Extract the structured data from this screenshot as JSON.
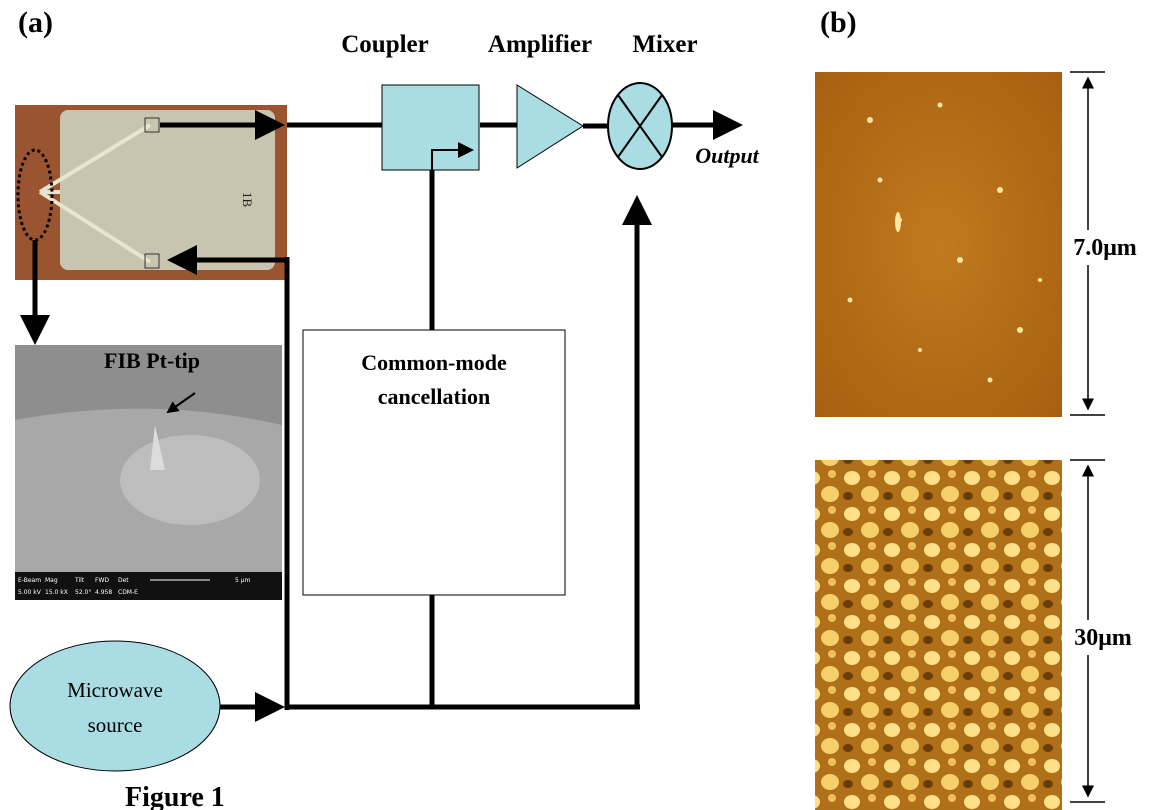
{
  "labels": {
    "panel_a": "(a)",
    "panel_b": "(b)"
  },
  "blocks": {
    "coupler": "Coupler",
    "amplifier": "Amplifier",
    "mixer": "Mixer",
    "output": "Output",
    "common_mode": [
      "Common-mode",
      "cancellation"
    ],
    "source": [
      "Microwave",
      "source"
    ]
  },
  "sem": {
    "title": "FIB Pt-tip",
    "info_heads": [
      "E-Beam",
      "Mag",
      "Tilt",
      "FWD",
      "Det"
    ],
    "info_values": [
      "5.00 kV",
      "15.0 kX",
      "52.0°",
      "4.958",
      "CDM-E"
    ],
    "scale": "5 μm"
  },
  "chip_label": "1B",
  "scales": {
    "top": "7.0μm",
    "bottom": "30μm"
  },
  "caption": "Figure 1"
}
